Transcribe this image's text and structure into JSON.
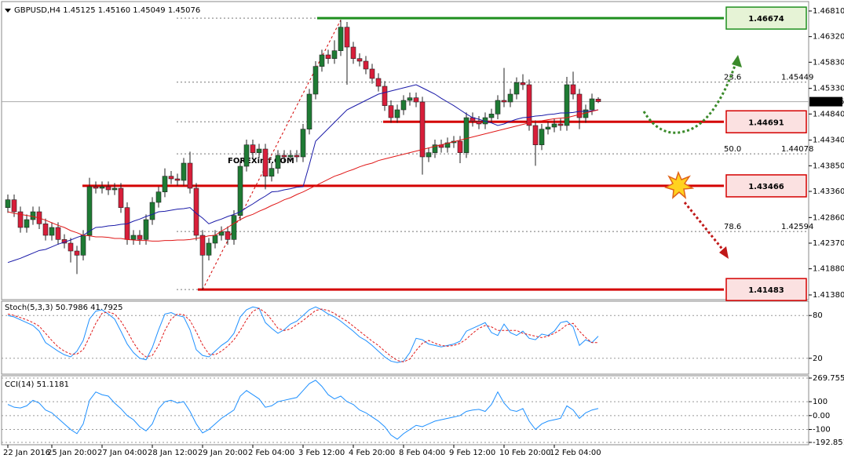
{
  "chart_data": [
    {
      "type": "candlestick",
      "title": "GBPUSD,H4  1.45125 1.45160 1.45049 1.45076",
      "watermark": "FOREXimf.COM",
      "categories": [
        "22 Jan 2016",
        null,
        null,
        null,
        null,
        null,
        null,
        "25 Jan 20:00",
        null,
        null,
        null,
        null,
        null,
        null,
        null,
        "27 Jan 04:00",
        null,
        null,
        null,
        null,
        null,
        null,
        null,
        "28 Jan 12:00",
        null,
        null,
        null,
        null,
        null,
        null,
        null,
        "29 Jan 20:00",
        null,
        null,
        null,
        null,
        null,
        null,
        null,
        "2 Feb 04:00",
        null,
        null,
        null,
        null,
        null,
        null,
        null,
        "3 Feb 12:00",
        null,
        null,
        null,
        null,
        null,
        null,
        null,
        "4 Feb 20:00",
        null,
        null,
        null,
        null,
        null,
        null,
        null,
        "8 Feb 04:00",
        null,
        null,
        null,
        null,
        null,
        null,
        null,
        "9 Feb 12:00",
        null,
        null,
        null,
        null,
        null,
        null,
        null,
        "10 Feb 20:00",
        null,
        null,
        null,
        null,
        null,
        null,
        null,
        "12 Feb 04:00",
        null,
        null,
        null,
        null,
        null,
        null,
        null
      ],
      "open": [
        1.4305,
        1.432,
        1.4297,
        1.4267,
        1.4282,
        1.4297,
        1.4274,
        1.4252,
        1.4267,
        1.4244,
        1.4237,
        1.4222,
        1.4214,
        1.4252,
        1.4345,
        1.4342,
        1.4345,
        1.4339,
        1.4342,
        1.4305,
        1.4244,
        1.4252,
        1.4244,
        1.4282,
        1.4315,
        1.4335,
        1.4365,
        1.436,
        1.4357,
        1.439,
        1.4342,
        1.4252,
        1.4214,
        1.4237,
        1.4252,
        1.4259,
        1.4244,
        1.429,
        1.4384,
        1.4425,
        1.441,
        1.4417,
        1.4365,
        1.438,
        1.4405,
        1.4402,
        1.4405,
        1.4402,
        1.4455,
        1.4522,
        1.4575,
        1.4597,
        1.459,
        1.4605,
        1.465,
        1.4612,
        1.459,
        1.4585,
        1.457,
        1.4552,
        1.4537,
        1.45,
        1.4477,
        1.4492,
        1.451,
        1.4515,
        1.4507,
        1.4402,
        1.441,
        1.4425,
        1.442,
        1.4429,
        1.4432,
        1.441,
        1.4477,
        1.447,
        1.4465,
        1.4477,
        1.4484,
        1.451,
        1.4507,
        1.4522,
        1.4544,
        1.454,
        1.4462,
        1.4425,
        1.4455,
        1.4459,
        1.4465,
        1.4462,
        1.454,
        1.4522,
        1.4477,
        1.4492,
        1.45125
      ],
      "high": [
        1.433,
        1.433,
        1.4307,
        1.4292,
        1.4307,
        1.4307,
        1.4284,
        1.4277,
        1.4277,
        1.4254,
        1.4247,
        1.4232,
        1.4262,
        1.4362,
        1.4355,
        1.4355,
        1.4355,
        1.4352,
        1.4352,
        1.4315,
        1.4262,
        1.4262,
        1.4292,
        1.4325,
        1.4345,
        1.438,
        1.4375,
        1.437,
        1.44,
        1.4412,
        1.4352,
        1.4262,
        1.4247,
        1.4262,
        1.4269,
        1.4269,
        1.43,
        1.4394,
        1.4435,
        1.4435,
        1.4427,
        1.4427,
        1.439,
        1.4415,
        1.4415,
        1.4415,
        1.4415,
        1.4465,
        1.4532,
        1.4585,
        1.4607,
        1.4607,
        1.4625,
        1.4664,
        1.466,
        1.4622,
        1.46,
        1.4595,
        1.458,
        1.4562,
        1.4547,
        1.451,
        1.4502,
        1.452,
        1.4525,
        1.4525,
        1.4517,
        1.442,
        1.4435,
        1.4435,
        1.4439,
        1.4442,
        1.4442,
        1.4487,
        1.4487,
        1.448,
        1.4487,
        1.4494,
        1.452,
        1.4572,
        1.4532,
        1.4554,
        1.456,
        1.455,
        1.4472,
        1.4465,
        1.4469,
        1.4475,
        1.4475,
        1.4555,
        1.4565,
        1.4532,
        1.4502,
        1.4523,
        1.4516
      ],
      "low": [
        1.4295,
        1.4287,
        1.4257,
        1.4257,
        1.4272,
        1.4264,
        1.4242,
        1.4242,
        1.4234,
        1.4227,
        1.42,
        1.4178,
        1.4204,
        1.4242,
        1.4332,
        1.4332,
        1.4329,
        1.4329,
        1.4295,
        1.4234,
        1.4234,
        1.4234,
        1.4234,
        1.4272,
        1.4305,
        1.4325,
        1.435,
        1.4347,
        1.4347,
        1.4332,
        1.4242,
        1.4148,
        1.4204,
        1.4227,
        1.4242,
        1.4234,
        1.4234,
        1.428,
        1.4374,
        1.44,
        1.44,
        1.434,
        1.4355,
        1.437,
        1.4392,
        1.4392,
        1.4392,
        1.4392,
        1.4445,
        1.4512,
        1.4565,
        1.458,
        1.458,
        1.4595,
        1.454,
        1.458,
        1.4575,
        1.456,
        1.4542,
        1.4527,
        1.449,
        1.4467,
        1.4467,
        1.4482,
        1.45,
        1.4497,
        1.4368,
        1.4392,
        1.44,
        1.441,
        1.441,
        1.4419,
        1.439,
        1.44,
        1.446,
        1.4455,
        1.4455,
        1.4467,
        1.4474,
        1.4497,
        1.4497,
        1.4512,
        1.453,
        1.4452,
        1.4385,
        1.4415,
        1.4445,
        1.4449,
        1.4452,
        1.4452,
        1.4512,
        1.4455,
        1.4467,
        1.4482,
        1.45049
      ],
      "close": [
        1.432,
        1.4297,
        1.4267,
        1.4282,
        1.4297,
        1.4274,
        1.4252,
        1.4267,
        1.4244,
        1.4237,
        1.4222,
        1.4214,
        1.4252,
        1.4345,
        1.4342,
        1.4345,
        1.4339,
        1.4342,
        1.4305,
        1.4244,
        1.4252,
        1.4244,
        1.4282,
        1.4315,
        1.4335,
        1.4365,
        1.436,
        1.4357,
        1.439,
        1.4342,
        1.4252,
        1.4214,
        1.4237,
        1.4252,
        1.4259,
        1.4244,
        1.429,
        1.4384,
        1.4425,
        1.441,
        1.4417,
        1.4365,
        1.438,
        1.4405,
        1.4402,
        1.4405,
        1.4402,
        1.4455,
        1.4522,
        1.4575,
        1.4597,
        1.459,
        1.4605,
        1.465,
        1.4612,
        1.459,
        1.4585,
        1.457,
        1.4552,
        1.4537,
        1.45,
        1.4477,
        1.4492,
        1.451,
        1.4515,
        1.4507,
        1.4402,
        1.441,
        1.4425,
        1.442,
        1.4429,
        1.4432,
        1.441,
        1.4477,
        1.447,
        1.4465,
        1.4477,
        1.4484,
        1.451,
        1.4507,
        1.4522,
        1.4544,
        1.454,
        1.4462,
        1.4425,
        1.4455,
        1.4459,
        1.4465,
        1.4462,
        1.454,
        1.4522,
        1.4477,
        1.4492,
        1.4513,
        1.45076
      ],
      "up_color": "#1e7b34",
      "down_color": "#d81e3a",
      "overlays": [
        {
          "color": "#1a1aa8",
          "values": [
            1.42,
            1.4204,
            1.4208,
            1.4213,
            1.4218,
            1.4223,
            1.4225,
            1.423,
            1.4235,
            1.4239,
            1.4243,
            1.4248,
            1.4252,
            1.426,
            1.4267,
            1.4268,
            1.427,
            1.4271,
            1.4273,
            1.4274,
            1.4279,
            1.4283,
            1.4288,
            1.4292,
            1.4297,
            1.4298,
            1.43,
            1.4302,
            1.4303,
            1.4305,
            1.4294,
            1.4285,
            1.4274,
            1.4279,
            1.4283,
            1.4288,
            1.4292,
            1.4297,
            1.4305,
            1.4312,
            1.432,
            1.4327,
            1.4335,
            1.4336,
            1.4339,
            1.4341,
            1.4344,
            1.4345,
            1.4387,
            1.4432,
            1.4444,
            1.4456,
            1.4468,
            1.448,
            1.4492,
            1.4498,
            1.4504,
            1.451,
            1.4516,
            1.4522,
            1.4525,
            1.4528,
            1.4531,
            1.4534,
            1.4537,
            1.454,
            1.4534,
            1.4528,
            1.4522,
            1.4514,
            1.4507,
            1.45,
            1.4492,
            1.4484,
            1.4477,
            1.4474,
            1.447,
            1.4467,
            1.4462,
            1.4465,
            1.447,
            1.4474,
            1.4477,
            1.4478,
            1.448,
            1.4481,
            1.4483,
            1.4484,
            1.4486,
            1.4486,
            1.4487,
            1.4489,
            1.4489,
            1.449,
            1.4492
          ]
        },
        {
          "color": "#e01818",
          "values": [
            1.4297,
            1.4294,
            1.4292,
            1.429,
            1.4288,
            1.4285,
            1.4281,
            1.4276,
            1.4271,
            1.4267,
            1.4261,
            1.4257,
            1.4252,
            1.4251,
            1.4249,
            1.4249,
            1.4248,
            1.4246,
            1.4246,
            1.4244,
            1.4243,
            1.4242,
            1.4242,
            1.4241,
            1.4241,
            1.4242,
            1.4242,
            1.4243,
            1.4243,
            1.4244,
            1.4246,
            1.4248,
            1.4251,
            1.4252,
            1.426,
            1.4267,
            1.4275,
            1.4282,
            1.4288,
            1.4292,
            1.4298,
            1.4303,
            1.4309,
            1.4314,
            1.432,
            1.4324,
            1.433,
            1.4335,
            1.4341,
            1.4347,
            1.4353,
            1.4359,
            1.4365,
            1.4369,
            1.4374,
            1.4378,
            1.4383,
            1.4387,
            1.439,
            1.4395,
            1.4398,
            1.4401,
            1.4404,
            1.4407,
            1.441,
            1.4413,
            1.4416,
            1.4419,
            1.4422,
            1.4425,
            1.4428,
            1.4431,
            1.4434,
            1.4437,
            1.444,
            1.4443,
            1.4446,
            1.4449,
            1.4452,
            1.4455,
            1.4458,
            1.4461,
            1.4464,
            1.4467,
            1.447,
            1.4471,
            1.4473,
            1.4475,
            1.4476,
            1.4477,
            1.448,
            1.4483,
            1.4486,
            1.4489,
            1.4492
          ]
        }
      ],
      "levels": [
        {
          "value": 1.46674,
          "color": "#1f8f1f",
          "fill": "#e6f3d6"
        },
        {
          "value": 1.44691,
          "color": "#d40000",
          "fill": "#fbe1e1"
        },
        {
          "value": 1.43466,
          "color": "#d40000",
          "fill": "#fbe1e1"
        },
        {
          "value": 1.41483,
          "color": "#d40000",
          "fill": "#fbe1e1"
        }
      ],
      "fibonacci": [
        {
          "ratio": "23.6",
          "value": 1.45449
        },
        {
          "ratio": "50.0",
          "value": 1.44078
        },
        {
          "ratio": "78.6",
          "value": 1.42594
        }
      ],
      "current_price": 1.45076,
      "ylim": [
        1.4129,
        1.46975
      ],
      "yticks": [
        {
          "value": 1.4681,
          "label": "1.46810"
        },
        {
          "value": 1.4632,
          "label": "1.46320"
        },
        {
          "value": 1.4583,
          "label": "1.45830"
        },
        {
          "value": 1.4533,
          "label": "1.45330"
        },
        {
          "value": 1.4484,
          "label": "1.44840"
        },
        {
          "value": 1.4434,
          "label": "1.44340"
        },
        {
          "value": 1.4385,
          "label": "1.43850"
        },
        {
          "value": 1.4336,
          "label": "1.43360"
        },
        {
          "value": 1.4286,
          "label": "1.42860"
        },
        {
          "value": 1.4237,
          "label": "1.42370"
        },
        {
          "value": 1.4188,
          "label": "1.41880"
        },
        {
          "value": 1.4138,
          "label": "1.41380"
        }
      ]
    },
    {
      "type": "line",
      "title": "Stoch(5,3,3) 50.7986 41.7925",
      "series": [
        {
          "color": "#1e90ff",
          "line_style": "solid",
          "values": [
            80,
            78,
            74,
            70,
            66,
            58,
            42,
            36,
            30,
            25,
            22,
            30,
            45,
            75,
            86,
            88,
            82,
            75,
            58,
            40,
            28,
            20,
            18,
            35,
            60,
            82,
            84,
            80,
            78,
            60,
            32,
            24,
            22,
            30,
            38,
            44,
            55,
            78,
            88,
            92,
            90,
            70,
            62,
            55,
            60,
            68,
            72,
            80,
            88,
            92,
            88,
            82,
            78,
            72,
            65,
            58,
            50,
            45,
            38,
            30,
            22,
            16,
            14,
            16,
            28,
            48,
            46,
            40,
            38,
            36,
            38,
            40,
            44,
            58,
            62,
            66,
            70,
            56,
            52,
            68,
            56,
            52,
            58,
            48,
            46,
            54,
            52,
            58,
            70,
            72,
            64,
            38,
            46,
            42,
            51
          ]
        },
        {
          "color": "#e01818",
          "line_style": "dashed",
          "values": [
            82,
            80,
            77,
            74,
            70,
            65,
            55,
            45,
            36,
            30,
            26,
            26,
            32,
            50,
            69,
            83,
            85,
            82,
            72,
            58,
            42,
            29,
            22,
            24,
            38,
            59,
            75,
            82,
            81,
            73,
            57,
            39,
            26,
            25,
            30,
            37,
            46,
            59,
            74,
            86,
            90,
            84,
            74,
            62,
            59,
            61,
            67,
            73,
            80,
            87,
            89,
            87,
            83,
            77,
            72,
            65,
            58,
            51,
            44,
            38,
            30,
            23,
            17,
            15,
            19,
            31,
            41,
            45,
            41,
            38,
            37,
            38,
            41,
            47,
            55,
            62,
            66,
            64,
            59,
            59,
            59,
            59,
            55,
            53,
            51,
            49,
            51,
            55,
            60,
            67,
            69,
            58,
            49,
            42,
            42
          ]
        }
      ],
      "ylim": [
        0,
        100
      ],
      "yticks": [
        80,
        20
      ]
    },
    {
      "type": "line",
      "title": "CCI(14) 51.1181",
      "series": [
        {
          "color": "#1e90ff",
          "line_style": "solid",
          "values": [
            80,
            60,
            55,
            70,
            110,
            90,
            40,
            20,
            -20,
            -60,
            -100,
            -130,
            -60,
            110,
            170,
            150,
            140,
            90,
            50,
            0,
            -30,
            -80,
            -110,
            -60,
            50,
            100,
            110,
            90,
            100,
            30,
            -60,
            -125,
            -100,
            -60,
            -20,
            10,
            40,
            140,
            180,
            150,
            120,
            60,
            70,
            100,
            110,
            120,
            130,
            180,
            230,
            254,
            210,
            150,
            120,
            140,
            100,
            80,
            40,
            20,
            -10,
            -40,
            -80,
            -140,
            -170,
            -130,
            -100,
            -70,
            -80,
            -60,
            -40,
            -30,
            -20,
            -10,
            0,
            30,
            40,
            45,
            30,
            80,
            170,
            90,
            40,
            30,
            50,
            -40,
            -100,
            -60,
            -40,
            -30,
            -20,
            70,
            40,
            -20,
            20,
            40,
            51
          ]
        }
      ],
      "ylim": [
        -192.851,
        269.755
      ],
      "yticks": [
        269.755,
        100,
        {
          "value": 0,
          "label": "0.00"
        },
        -100,
        -192.851
      ]
    }
  ]
}
